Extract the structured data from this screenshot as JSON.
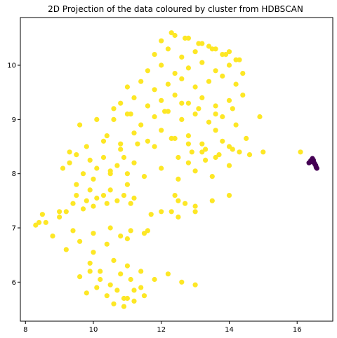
{
  "chart_data": {
    "type": "scatter",
    "title": "2D Projection of the data coloured by cluster from HDBSCAN",
    "xlabel": "",
    "ylabel": "",
    "xlim": [
      7.85,
      17.05
    ],
    "ylim": [
      5.28,
      10.88
    ],
    "xticks": [
      "8",
      "10",
      "12",
      "14",
      "16"
    ],
    "yticks": [
      "6",
      "7",
      "8",
      "9",
      "10"
    ],
    "grid": false,
    "legend": "none",
    "colors": {
      "cluster_main": "#fde725",
      "cluster_outlier": "#440154"
    },
    "series": [
      {
        "color": "#fde725",
        "x": [
          8.3,
          8.5,
          8.6,
          8.8,
          9.0,
          9.2,
          9.4,
          9.5,
          9.7,
          9.8,
          9.9,
          10.0,
          10.1,
          10.3,
          10.4,
          10.5,
          10.7,
          10.9,
          11.1,
          11.2,
          9.1,
          9.3,
          9.5,
          9.7,
          9.9,
          10.1,
          10.3,
          10.5,
          10.7,
          10.9,
          11.0,
          11.2,
          9.2,
          9.6,
          10.0,
          10.4,
          10.8,
          11.1,
          9.4,
          9.9,
          10.2,
          10.6,
          11.0,
          11.4,
          11.8,
          12.2,
          12.6,
          13.0,
          10.4,
          10.8,
          11.2,
          11.6,
          12.0,
          12.4,
          12.8,
          13.2,
          13.6,
          10.6,
          11.0,
          11.4,
          11.8,
          12.2,
          12.6,
          13.0,
          13.4,
          13.8,
          14.2,
          10.8,
          11.2,
          11.6,
          12.0,
          12.4,
          12.8,
          13.2,
          13.6,
          14.0,
          14.4,
          11.0,
          11.4,
          11.8,
          12.2,
          12.6,
          13.0,
          13.4,
          13.8,
          14.2,
          11.6,
          12.0,
          12.4,
          12.8,
          13.2,
          13.6,
          14.0,
          14.4,
          11.8,
          12.2,
          12.6,
          13.0,
          13.4,
          13.8,
          14.2,
          12.0,
          12.4,
          12.8,
          13.2,
          13.6,
          14.0,
          12.3,
          12.7,
          13.1,
          13.5,
          13.9,
          14.3,
          12.5,
          12.9,
          13.3,
          13.7,
          14.1,
          12.8,
          13.2,
          13.6,
          14.0,
          9.6,
          9.9,
          10.2,
          10.5,
          10.8,
          11.1,
          9.8,
          10.1,
          10.4,
          10.7,
          11.0,
          10.6,
          10.9,
          11.2,
          11.5,
          10.9,
          11.2,
          11.4,
          8.4,
          9.0,
          9.5,
          10.0,
          10.5,
          11.0,
          11.5,
          12.0,
          12.5,
          13.0,
          13.5,
          14.0,
          9.3,
          9.8,
          10.3,
          10.8,
          11.3,
          11.8,
          12.3,
          12.8,
          13.3,
          13.8,
          14.3,
          9.6,
          10.1,
          10.6,
          11.1,
          11.6,
          12.1,
          12.6,
          13.1,
          13.6,
          14.1,
          10.0,
          10.5,
          11.0,
          11.5,
          12.0,
          12.5,
          13.0,
          13.5,
          14.0,
          14.5,
          14.9,
          15.0,
          14.6,
          12.3,
          11.7,
          11.6,
          12.7,
          13.0,
          12.5,
          12.4
        ],
        "y": [
          7.05,
          7.25,
          7.1,
          6.85,
          7.2,
          7.3,
          7.45,
          7.6,
          7.35,
          7.5,
          7.7,
          7.4,
          7.55,
          7.6,
          7.45,
          7.7,
          7.5,
          7.6,
          7.45,
          7.55,
          8.1,
          8.2,
          8.35,
          8.0,
          8.25,
          8.1,
          8.3,
          8.05,
          8.15,
          8.3,
          8.0,
          8.2,
          6.6,
          6.75,
          6.55,
          6.7,
          6.85,
          6.95,
          6.95,
          6.35,
          6.2,
          6.4,
          6.3,
          6.2,
          6.05,
          6.15,
          6.0,
          5.95,
          8.7,
          8.55,
          8.75,
          8.6,
          8.8,
          8.65,
          8.7,
          8.55,
          8.8,
          9.0,
          9.1,
          8.9,
          9.05,
          9.15,
          9.0,
          9.1,
          8.95,
          9.05,
          8.9,
          9.3,
          9.4,
          9.25,
          9.35,
          9.45,
          9.3,
          9.4,
          9.25,
          9.35,
          9.45,
          9.6,
          9.7,
          9.55,
          9.65,
          9.75,
          9.6,
          9.7,
          9.8,
          9.65,
          9.9,
          10.0,
          9.85,
          9.95,
          10.05,
          9.9,
          10.0,
          9.85,
          10.2,
          10.3,
          10.15,
          10.25,
          10.35,
          10.2,
          10.1,
          10.45,
          10.55,
          10.5,
          10.4,
          10.3,
          10.25,
          10.6,
          10.5,
          10.4,
          10.3,
          10.2,
          10.1,
          8.3,
          8.4,
          8.25,
          8.35,
          8.45,
          8.2,
          8.4,
          8.3,
          8.5,
          6.1,
          6.2,
          6.05,
          5.95,
          6.15,
          6.05,
          5.8,
          5.9,
          5.75,
          5.85,
          5.7,
          5.6,
          5.7,
          5.65,
          5.75,
          5.55,
          5.85,
          5.9,
          7.1,
          7.3,
          7.8,
          7.9,
          8.0,
          7.8,
          7.95,
          8.1,
          7.9,
          8.05,
          7.95,
          8.15,
          8.4,
          8.5,
          8.6,
          8.45,
          8.55,
          8.5,
          8.65,
          8.55,
          8.45,
          8.6,
          8.4,
          8.9,
          9.0,
          9.2,
          9.1,
          9.25,
          9.15,
          9.3,
          9.2,
          9.1,
          9.2,
          6.9,
          7.0,
          6.8,
          6.9,
          7.3,
          7.2,
          7.4,
          7.5,
          7.6,
          8.65,
          9.05,
          8.4,
          8.35,
          7.3,
          7.25,
          6.95,
          7.45,
          7.3,
          7.5,
          7.6
        ]
      },
      {
        "color": "#440154",
        "x": [
          16.35,
          16.42,
          16.48,
          16.52,
          16.55,
          16.58,
          16.45,
          16.5,
          16.56,
          16.4
        ],
        "y": [
          8.2,
          8.22,
          8.25,
          8.18,
          8.15,
          8.1,
          8.28,
          8.2,
          8.12,
          8.24
        ]
      },
      {
        "color": "#fde725",
        "x": [
          16.1
        ],
        "y": [
          8.4
        ]
      }
    ]
  }
}
